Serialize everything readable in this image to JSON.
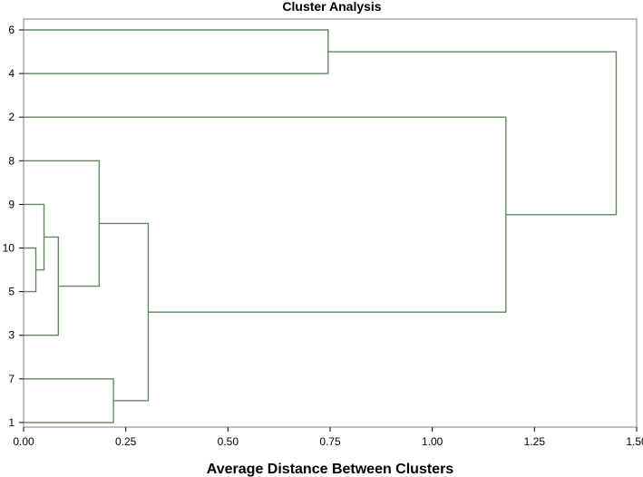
{
  "chart_data": {
    "type": "dendrogram",
    "title": "Cluster Analysis",
    "xlabel": "Average Distance Between Clusters",
    "ylabel": "",
    "xlim": [
      0,
      1.5
    ],
    "x_ticks": [
      "0.00",
      "0.25",
      "0.50",
      "0.75",
      "1.00",
      "1.25",
      "1.50"
    ],
    "leaves": [
      "6",
      "4",
      "2",
      "8",
      "9",
      "10",
      "5",
      "3",
      "7",
      "1"
    ],
    "merges": [
      {
        "id": "c1",
        "left": "10",
        "right": "5",
        "height": 0.03
      },
      {
        "id": "c2",
        "left": "9",
        "right": "c1",
        "height": 0.05
      },
      {
        "id": "c3",
        "left": "c2",
        "right": "3",
        "height": 0.085
      },
      {
        "id": "c4",
        "left": "8",
        "right": "c3",
        "height": 0.185
      },
      {
        "id": "c5",
        "left": "7",
        "right": "1",
        "height": 0.22
      },
      {
        "id": "c6",
        "left": "c4",
        "right": "c5",
        "height": 0.305
      },
      {
        "id": "c7",
        "left": "6",
        "right": "4",
        "height": 0.745
      },
      {
        "id": "c8",
        "left": "2",
        "right": "c6",
        "height": 1.18
      },
      {
        "id": "c9",
        "left": "c7",
        "right": "c8",
        "height": 1.45
      }
    ],
    "grid": false,
    "line_color": "#5f8a5f"
  }
}
